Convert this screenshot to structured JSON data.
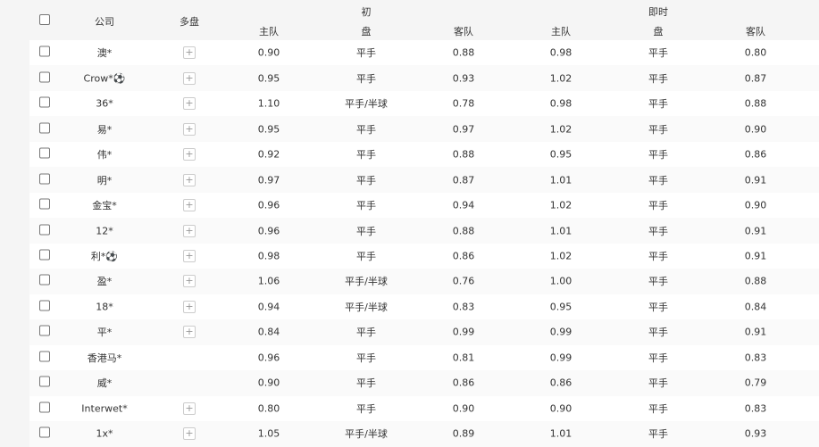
{
  "header": {
    "company": "公司",
    "multi": "多盘",
    "initial": "初",
    "live": "即时",
    "home": "主队",
    "handicap": "盘",
    "away": "客队"
  },
  "rows": [
    {
      "company": "澳*",
      "multi": true,
      "i_home": "0.90",
      "i_pan": "平手",
      "i_away": "0.88",
      "l_home": "0.98",
      "l_pan": "平手",
      "l_away": "0.80"
    },
    {
      "company": "Crow*⚽",
      "multi": true,
      "i_home": "0.95",
      "i_pan": "平手",
      "i_away": "0.93",
      "l_home": "1.02",
      "l_pan": "平手",
      "l_away": "0.87"
    },
    {
      "company": "36*",
      "multi": true,
      "i_home": "1.10",
      "i_pan": "平手/半球",
      "i_away": "0.78",
      "l_home": "0.98",
      "l_pan": "平手",
      "l_away": "0.88"
    },
    {
      "company": "易*",
      "multi": true,
      "i_home": "0.95",
      "i_pan": "平手",
      "i_away": "0.97",
      "l_home": "1.02",
      "l_pan": "平手",
      "l_away": "0.90"
    },
    {
      "company": "伟*",
      "multi": true,
      "i_home": "0.92",
      "i_pan": "平手",
      "i_away": "0.88",
      "l_home": "0.95",
      "l_pan": "平手",
      "l_away": "0.86"
    },
    {
      "company": "明*",
      "multi": true,
      "i_home": "0.97",
      "i_pan": "平手",
      "i_away": "0.87",
      "l_home": "1.01",
      "l_pan": "平手",
      "l_away": "0.91"
    },
    {
      "company": "金宝*",
      "multi": true,
      "i_home": "0.96",
      "i_pan": "平手",
      "i_away": "0.94",
      "l_home": "1.02",
      "l_pan": "平手",
      "l_away": "0.90"
    },
    {
      "company": "12*",
      "multi": true,
      "i_home": "0.96",
      "i_pan": "平手",
      "i_away": "0.88",
      "l_home": "1.01",
      "l_pan": "平手",
      "l_away": "0.91"
    },
    {
      "company": "利*⚽",
      "multi": true,
      "i_home": "0.98",
      "i_pan": "平手",
      "i_away": "0.86",
      "l_home": "1.02",
      "l_pan": "平手",
      "l_away": "0.91"
    },
    {
      "company": "盈*",
      "multi": true,
      "i_home": "1.06",
      "i_pan": "平手/半球",
      "i_away": "0.76",
      "l_home": "1.00",
      "l_pan": "平手",
      "l_away": "0.88"
    },
    {
      "company": "18*",
      "multi": true,
      "i_home": "0.94",
      "i_pan": "平手/半球",
      "i_away": "0.83",
      "l_home": "0.95",
      "l_pan": "平手",
      "l_away": "0.84"
    },
    {
      "company": "平*",
      "multi": true,
      "i_home": "0.84",
      "i_pan": "平手",
      "i_away": "0.99",
      "l_home": "0.99",
      "l_pan": "平手",
      "l_away": "0.91"
    },
    {
      "company": "香港马*",
      "multi": false,
      "i_home": "0.96",
      "i_pan": "平手",
      "i_away": "0.81",
      "l_home": "0.99",
      "l_pan": "平手",
      "l_away": "0.83"
    },
    {
      "company": "威*",
      "multi": false,
      "i_home": "0.90",
      "i_pan": "平手",
      "i_away": "0.86",
      "l_home": "0.86",
      "l_pan": "平手",
      "l_away": "0.79"
    },
    {
      "company": "Interwet*",
      "multi": true,
      "i_home": "0.80",
      "i_pan": "平手",
      "i_away": "0.90",
      "l_home": "0.90",
      "l_pan": "平手",
      "l_away": "0.83"
    },
    {
      "company": "1x*",
      "multi": true,
      "i_home": "1.05",
      "i_pan": "平手/半球",
      "i_away": "0.89",
      "l_home": "1.01",
      "l_pan": "平手",
      "l_away": "0.93"
    }
  ]
}
